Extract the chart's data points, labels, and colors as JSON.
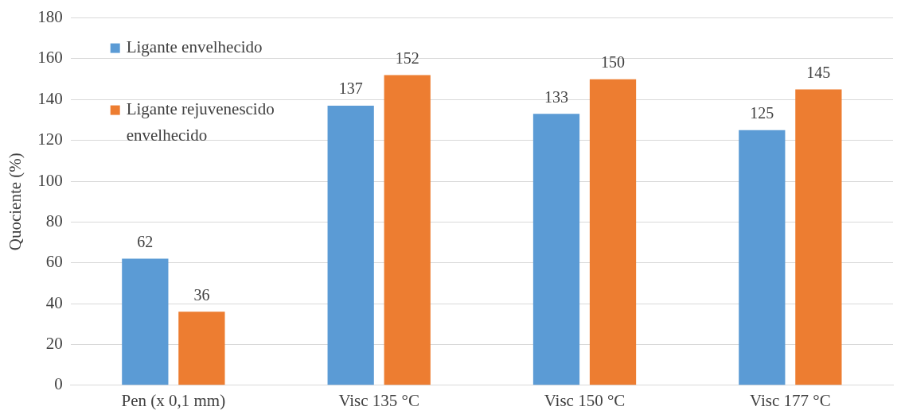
{
  "chart_data": {
    "type": "bar",
    "ylabel": "Quociente (%)",
    "categories": [
      "Pen (x 0,1 mm)",
      "Visc 135 °C",
      "Visc 150 °C",
      "Visc 177 °C"
    ],
    "series": [
      {
        "name": "Ligante envelhecido",
        "color": "#5b9bd5",
        "values": [
          62,
          137,
          133,
          125
        ]
      },
      {
        "name": "Ligante rejuvenescido envelhecido",
        "color": "#ed7d31",
        "values": [
          36,
          152,
          150,
          145
        ]
      }
    ],
    "ylim": [
      0,
      180
    ],
    "yticks": [
      0,
      20,
      40,
      60,
      80,
      100,
      120,
      140,
      160,
      180
    ],
    "grid": "y",
    "legend": "top left",
    "data_labels": true
  }
}
